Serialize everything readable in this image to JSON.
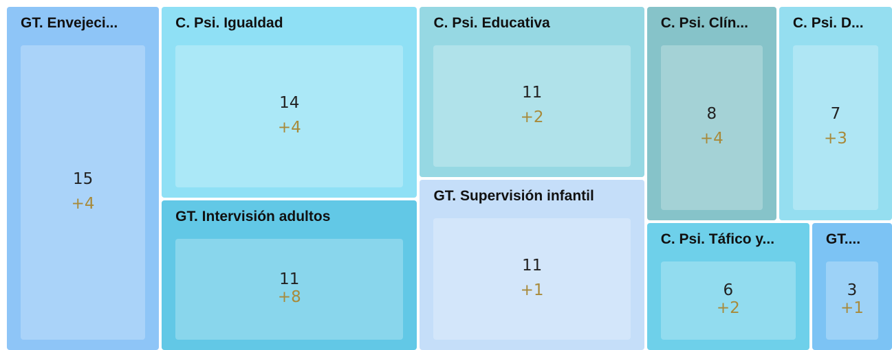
{
  "chart_data": {
    "type": "treemap",
    "categories": [
      "GT. Envejeci...",
      "C. Psi. Igualdad",
      "GT. Intervisión adultos",
      "C. Psi. Educativa",
      "GT. Supervisión infantil",
      "C. Psi. Clín...",
      "C. Psi. D...",
      "C. Psi. Táfico y...",
      "GT...."
    ],
    "values": [
      15,
      14,
      11,
      11,
      11,
      8,
      7,
      6,
      3
    ],
    "changes": [
      4,
      4,
      8,
      2,
      1,
      4,
      3,
      2,
      1
    ],
    "change_labels": [
      "+4",
      "+4",
      "+8",
      "+2",
      "+1",
      "+4",
      "+3",
      "+2",
      "+1"
    ],
    "colors": [
      "#8ec5f7",
      "#8fe0f5",
      "#62c8e6",
      "#96d8e3",
      "#c5def9",
      "#86c3c9",
      "#95def0",
      "#6ed0ea",
      "#7cc3f4"
    ]
  }
}
